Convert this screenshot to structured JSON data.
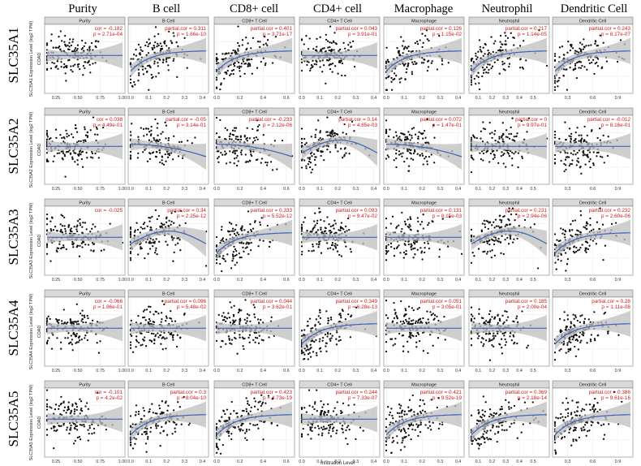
{
  "columns": [
    "Purity",
    "B cell",
    "CD8+ cell",
    "CD4+ cell",
    "Macrophage",
    "Neutrophil",
    "Dendritic Cell"
  ],
  "chart_data": {
    "type": "scatter",
    "title": "",
    "xlabel": "Infiltration Level",
    "cancer_label": "COAD",
    "rows": [
      {
        "gene": "SLC35A1",
        "ylabel": "SLC35A1 Expression Level (log2 TPM)",
        "panels": [
          {
            "strip": "Purity",
            "stat_label": "cor",
            "cor": "-0.182",
            "p": "2.71e-04",
            "trend": "flat",
            "xlim": [
              0.15,
              1.0
            ],
            "ticks": [
              "0.25",
              "0.50",
              "0.75",
              "1.00"
            ]
          },
          {
            "strip": "B Cell",
            "stat_label": "partial.cor",
            "cor": "0.311",
            "p": "1.66e-10",
            "trend": "rise",
            "xlim": [
              0.0,
              0.42
            ],
            "ticks": [
              "0.0",
              "0.1",
              "0.2",
              "0.3",
              "0.4"
            ]
          },
          {
            "strip": "CD8+ T Cell",
            "stat_label": "partial.cor",
            "cor": "0.401",
            "p": "3.71e-17",
            "trend": "rise",
            "xlim": [
              0.0,
              0.65
            ],
            "ticks": [
              "0.0",
              "0.2",
              "0.4",
              "0.6"
            ]
          },
          {
            "strip": "CD4+ T Cell",
            "stat_label": "partial.cor",
            "cor": "0.043",
            "p": "3.91e-01",
            "trend": "flat",
            "xlim": [
              0.0,
              0.42
            ],
            "ticks": [
              "0.0",
              "0.1",
              "0.2",
              "0.3",
              "0.4"
            ]
          },
          {
            "strip": "Macrophage",
            "stat_label": "partial.cor",
            "cor": "0.126",
            "p": "1.15e-02",
            "trend": "rise",
            "xlim": [
              0.0,
              0.42
            ],
            "ticks": [
              "0.0",
              "0.1",
              "0.2",
              "0.3",
              "0.4"
            ]
          },
          {
            "strip": "Neutrophil",
            "stat_label": "partial.cor",
            "cor": "0.217",
            "p": "1.14e-05",
            "trend": "rise",
            "xlim": [
              0.05,
              0.6
            ],
            "ticks": [
              "0.1",
              "0.2",
              "0.3",
              "0.4",
              "0.5"
            ]
          },
          {
            "strip": "Dendritic Cell",
            "stat_label": "partial.cor",
            "cor": "0.243",
            "p": "8.17e-07",
            "trend": "rise",
            "xlim": [
              0.15,
              1.05
            ],
            "ticks": [
              "0.3",
              "0.6",
              "0.9"
            ]
          }
        ]
      },
      {
        "gene": "SLC35A2",
        "ylabel": "SLC35A2 Expression Level (log2 TPM)",
        "panels": [
          {
            "strip": "Purity",
            "stat_label": "cor",
            "cor": "0.038",
            "p": "4.49e-01",
            "trend": "flat",
            "xlim": [
              0.15,
              1.0
            ],
            "ticks": [
              "0.25",
              "0.50",
              "0.75",
              "1.00"
            ]
          },
          {
            "strip": "B Cell",
            "stat_label": "partial.cor",
            "cor": "-0.05",
            "p": "3.14e-01",
            "trend": "fall",
            "xlim": [
              0.0,
              0.42
            ],
            "ticks": [
              "0.0",
              "0.1",
              "0.2",
              "0.3",
              "0.4"
            ]
          },
          {
            "strip": "CD8+ T Cell",
            "stat_label": "partial.cor",
            "cor": "-0.233",
            "p": "2.12e-06",
            "trend": "fall",
            "xlim": [
              0.0,
              0.65
            ],
            "ticks": [
              "0.0",
              "0.2",
              "0.4",
              "0.6"
            ]
          },
          {
            "strip": "CD4+ T Cell",
            "stat_label": "partial.cor",
            "cor": "0.14",
            "p": "4.85e-03",
            "trend": "hump",
            "xlim": [
              0.0,
              0.42
            ],
            "ticks": [
              "0.0",
              "0.1",
              "0.2",
              "0.3",
              "0.4"
            ]
          },
          {
            "strip": "Macrophage",
            "stat_label": "partial.cor",
            "cor": "0.072",
            "p": "1.47e-01",
            "trend": "fall",
            "xlim": [
              0.0,
              0.42
            ],
            "ticks": [
              "0.0",
              "0.1",
              "0.2",
              "0.3",
              "0.4"
            ]
          },
          {
            "strip": "Neutrophil",
            "stat_label": "partial.cor",
            "cor": "0",
            "p": "9.97e-01",
            "trend": "flat",
            "xlim": [
              0.05,
              0.6
            ],
            "ticks": [
              "0.1",
              "0.2",
              "0.3",
              "0.4",
              "0.5"
            ]
          },
          {
            "strip": "Dendritic Cell",
            "stat_label": "partial.cor",
            "cor": "-0.012",
            "p": "8.16e-01",
            "trend": "flat",
            "xlim": [
              0.15,
              1.05
            ],
            "ticks": [
              "0.3",
              "0.6",
              "0.9"
            ]
          }
        ]
      },
      {
        "gene": "SLC35A3",
        "ylabel": "SLC35A3 Expression Level (log2 TPM)",
        "panels": [
          {
            "strip": "Purity",
            "stat_label": "cor",
            "cor": "-0.025",
            "p": "",
            "trend": "flat",
            "xlim": [
              0.15,
              1.0
            ],
            "ticks": [
              "0.25",
              "0.50",
              "0.75",
              "1.00"
            ]
          },
          {
            "strip": "B Cell",
            "stat_label": "partial.cor",
            "cor": "0.34",
            "p": "2.25e-12",
            "trend": "hump",
            "xlim": [
              0.0,
              0.42
            ],
            "ticks": [
              "0.0",
              "0.1",
              "0.2",
              "0.3",
              "0.4"
            ]
          },
          {
            "strip": "CD8+ T Cell",
            "stat_label": "partial.cor",
            "cor": "0.333",
            "p": "5.52e-12",
            "trend": "rise",
            "xlim": [
              0.0,
              0.65
            ],
            "ticks": [
              "0.0",
              "0.2",
              "0.4",
              "0.6"
            ]
          },
          {
            "strip": "CD4+ T Cell",
            "stat_label": "partial.cor",
            "cor": "0.093",
            "p": "9.47e-02",
            "trend": "flat",
            "xlim": [
              0.0,
              0.42
            ],
            "ticks": [
              "0.0",
              "0.1",
              "0.2",
              "0.3",
              "0.4"
            ]
          },
          {
            "strip": "Macrophage",
            "stat_label": "partial.cor",
            "cor": "0.131",
            "p": "8.15e-03",
            "trend": "flat",
            "xlim": [
              0.0,
              0.42
            ],
            "ticks": [
              "0.0",
              "0.1",
              "0.2",
              "0.3",
              "0.4"
            ]
          },
          {
            "strip": "Neutrophil",
            "stat_label": "partial.cor",
            "cor": "0.231",
            "p": "2.94e-06",
            "trend": "hump",
            "xlim": [
              0.05,
              0.6
            ],
            "ticks": [
              "0.1",
              "0.2",
              "0.3",
              "0.4",
              "0.5"
            ]
          },
          {
            "strip": "Dendritic Cell",
            "stat_label": "partial.cor",
            "cor": "0.232",
            "p": "2.60e-06",
            "trend": "rise",
            "xlim": [
              0.15,
              1.05
            ],
            "ticks": [
              "0.3",
              "0.6",
              "0.9"
            ]
          }
        ]
      },
      {
        "gene": "SLC35A4",
        "ylabel": "SLC35A4 Expression Level (log2 TPM)",
        "panels": [
          {
            "strip": "Purity",
            "stat_label": "cor",
            "cor": "-0.066",
            "p": "1.86e-01",
            "trend": "flat",
            "xlim": [
              0.15,
              1.0
            ],
            "ticks": [
              "0.25",
              "0.50",
              "0.75",
              "1.00"
            ]
          },
          {
            "strip": "B Cell",
            "stat_label": "partial.cor",
            "cor": "0.096",
            "p": "5.48e-02",
            "trend": "flat",
            "xlim": [
              0.0,
              0.42
            ],
            "ticks": [
              "0.0",
              "0.1",
              "0.2",
              "0.3",
              "0.4"
            ]
          },
          {
            "strip": "CD8+ T Cell",
            "stat_label": "partial.cor",
            "cor": "0.044",
            "p": "3.62e-01",
            "trend": "flat",
            "xlim": [
              0.0,
              0.65
            ],
            "ticks": [
              "0.0",
              "0.2",
              "0.4",
              "0.6"
            ]
          },
          {
            "strip": "CD4+ T Cell",
            "stat_label": "partial.cor",
            "cor": "0.349",
            "p": "6.28e-13",
            "trend": "rise",
            "xlim": [
              0.0,
              0.42
            ],
            "ticks": [
              "0.0",
              "0.1",
              "0.2",
              "0.3",
              "0.4"
            ]
          },
          {
            "strip": "Macrophage",
            "stat_label": "partial.cor",
            "cor": "0.051",
            "p": "3.05e-01",
            "trend": "flat",
            "xlim": [
              0.0,
              0.42
            ],
            "ticks": [
              "0.0",
              "0.1",
              "0.2",
              "0.3",
              "0.4"
            ]
          },
          {
            "strip": "Neutrophil",
            "stat_label": "partial.cor",
            "cor": "0.185",
            "p": "2.00e-04",
            "trend": "flat",
            "xlim": [
              0.05,
              0.6
            ],
            "ticks": [
              "0.1",
              "0.2",
              "0.3",
              "0.4",
              "0.5"
            ]
          },
          {
            "strip": "Dendritic Cell",
            "stat_label": "partial.cor",
            "cor": "0.28",
            "p": "1.11e-08",
            "trend": "rise",
            "xlim": [
              0.15,
              1.05
            ],
            "ticks": [
              "0.3",
              "0.6",
              "0.9"
            ]
          }
        ]
      },
      {
        "gene": "SLC35A5",
        "ylabel": "SLC35A5 Expression Level (log2 TPM)",
        "panels": [
          {
            "strip": "Purity",
            "stat_label": "cor",
            "cor": "-0.101",
            "p": "4.2e-02",
            "trend": "flat",
            "xlim": [
              0.15,
              1.0
            ],
            "ticks": [
              "0.25",
              "0.50",
              "0.75",
              "1.00"
            ]
          },
          {
            "strip": "B Cell",
            "stat_label": "partial.cor",
            "cor": "0.3",
            "p": "8.04e-10",
            "trend": "rise",
            "xlim": [
              0.0,
              0.42
            ],
            "ticks": [
              "0.0",
              "0.1",
              "0.2",
              "0.3",
              "0.4"
            ]
          },
          {
            "strip": "CD8+ T Cell",
            "stat_label": "partial.cor",
            "cor": "0.423",
            "p": "4.73e-19",
            "trend": "rise",
            "xlim": [
              0.0,
              0.65
            ],
            "ticks": [
              "0.0",
              "0.2",
              "0.4",
              "0.6"
            ]
          },
          {
            "strip": "CD4+ T Cell",
            "stat_label": "partial.cor",
            "cor": "0.244",
            "p": "7.33e-07",
            "trend": "flat",
            "xlim": [
              0.0,
              0.42
            ],
            "ticks": [
              "0.0",
              "0.1",
              "0.2",
              "0.3",
              "0.4"
            ]
          },
          {
            "strip": "Macrophage",
            "stat_label": "partial.cor",
            "cor": "0.421",
            "p": "9.52e-19",
            "trend": "rise",
            "xlim": [
              0.0,
              0.42
            ],
            "ticks": [
              "0.0",
              "0.1",
              "0.2",
              "0.3",
              "0.4"
            ]
          },
          {
            "strip": "Neutrophil",
            "stat_label": "partial.cor",
            "cor": "0.369",
            "p": "2.18e-14",
            "trend": "rise",
            "xlim": [
              0.05,
              0.6
            ],
            "ticks": [
              "0.1",
              "0.2",
              "0.3",
              "0.4",
              "0.5"
            ]
          },
          {
            "strip": "Dendritic Cell",
            "stat_label": "partial.cor",
            "cor": "0.386",
            "p": "9.61e-16",
            "trend": "rise",
            "xlim": [
              0.15,
              1.05
            ],
            "ticks": [
              "0.3",
              "0.6",
              "0.9"
            ]
          }
        ]
      }
    ],
    "colors": {
      "points": "#111111",
      "fit": "#3a64b8",
      "ci_band": "#bfbfbf",
      "stat_text": "#d11a1a",
      "strip": "#d9d9d9"
    }
  }
}
